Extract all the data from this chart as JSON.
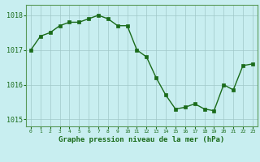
{
  "x": [
    0,
    1,
    2,
    3,
    4,
    5,
    6,
    7,
    8,
    9,
    10,
    11,
    12,
    13,
    14,
    15,
    16,
    17,
    18,
    19,
    20,
    21,
    22,
    23
  ],
  "y": [
    1017.0,
    1017.4,
    1017.5,
    1017.7,
    1017.8,
    1017.8,
    1017.9,
    1018.0,
    1017.9,
    1017.7,
    1017.7,
    1017.0,
    1016.8,
    1016.2,
    1015.7,
    1015.3,
    1015.35,
    1015.45,
    1015.3,
    1015.25,
    1016.0,
    1015.85,
    1016.55,
    1016.6
  ],
  "line_color": "#1a6b1a",
  "marker_color": "#1a6b1a",
  "bg_color": "#c8eef0",
  "grid_color": "#a0c8c8",
  "border_color": "#5a9a5a",
  "xlabel": "Graphe pression niveau de la mer (hPa)",
  "xlabel_color": "#1a6b1a",
  "ylabel_ticks": [
    1015,
    1016,
    1017,
    1018
  ],
  "ylim": [
    1014.8,
    1018.3
  ],
  "xlim": [
    -0.5,
    23.5
  ],
  "xtick_labels": [
    "0",
    "1",
    "2",
    "3",
    "4",
    "5",
    "6",
    "7",
    "8",
    "9",
    "10",
    "11",
    "12",
    "13",
    "14",
    "15",
    "16",
    "17",
    "18",
    "19",
    "20",
    "21",
    "22",
    "23"
  ],
  "tick_color": "#1a6b1a",
  "bottom_bar_color": "#2a8a2a",
  "bottom_bar_height": 0.15
}
